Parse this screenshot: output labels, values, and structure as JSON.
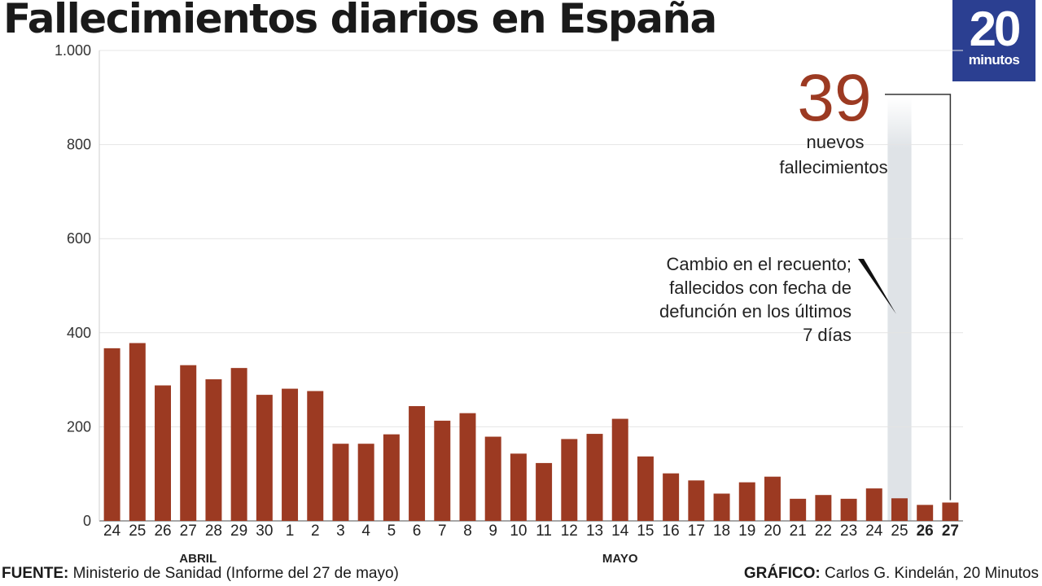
{
  "header": {
    "title": "Fallecimientos diarios en España"
  },
  "logo": {
    "number": "20",
    "word": "minutos",
    "color": "#2b3f91"
  },
  "footer": {
    "source_label": "FUENTE:",
    "source_text": "Ministerio de Sanidad (Informe del 27 de mayo)",
    "credit_label": "GRÁFICO:",
    "credit_text": "Carlos G. Kindelán, 20 Minutos"
  },
  "chart_data": {
    "type": "bar",
    "title": "Fallecimientos diarios en España",
    "categories": [
      "24",
      "25",
      "26",
      "27",
      "28",
      "29",
      "30",
      "1",
      "2",
      "3",
      "4",
      "5",
      "6",
      "7",
      "8",
      "9",
      "10",
      "11",
      "12",
      "13",
      "14",
      "15",
      "16",
      "17",
      "18",
      "19",
      "20",
      "21",
      "22",
      "23",
      "24",
      "25",
      "26",
      "27"
    ],
    "bold_categories": [
      "26",
      "27"
    ],
    "month_groups": [
      {
        "label": "ABRIL",
        "first_index": 0,
        "last_index": 6
      },
      {
        "label": "MAYO",
        "first_index": 7,
        "last_index": 33
      }
    ],
    "values": [
      367,
      378,
      288,
      331,
      301,
      325,
      268,
      281,
      276,
      164,
      164,
      184,
      244,
      213,
      229,
      179,
      143,
      123,
      174,
      185,
      217,
      137,
      101,
      86,
      58,
      82,
      94,
      47,
      55,
      47,
      69,
      48,
      34,
      39
    ],
    "ylim": [
      0,
      1000
    ],
    "yticks": [
      0,
      200,
      400,
      600,
      800,
      1000
    ],
    "ytick_labels": [
      "0",
      "200",
      "400",
      "600",
      "800",
      "1.000"
    ],
    "grid": true,
    "bar_color": "#9c3a22",
    "highlight": {
      "value": "39",
      "value_color": "#9c3a22",
      "label_line1": "nuevos",
      "label_line2": "fallecimientos",
      "category_index": 33
    },
    "shaded_band": {
      "category_index": 31
    },
    "annotation": {
      "lines": [
        "Cambio en el recuento;",
        "fallecidos con fecha de",
        "defunción en los últimos",
        "7 días"
      ],
      "category_index": 31
    }
  }
}
